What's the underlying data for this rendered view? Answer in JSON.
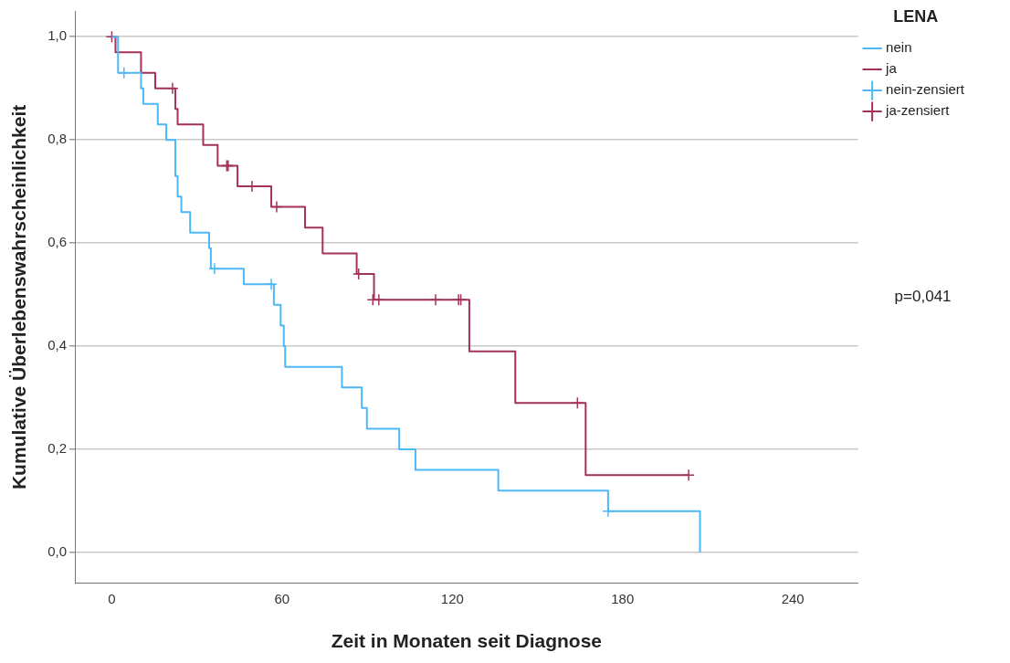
{
  "chart_data": {
    "type": "step",
    "xlabel": "Zeit in Monaten seit Diagnose",
    "ylabel": "Kumulative Überlebenswahrscheinlichkeit",
    "legend_title": "LENA",
    "annotations": [
      "p=0,041"
    ],
    "xlim": [
      -13,
      263
    ],
    "xticks": [
      0,
      60,
      120,
      180,
      240
    ],
    "ylim": [
      -0.06,
      1.05
    ],
    "yticks": [
      {
        "value": 0,
        "label": "0,0"
      },
      {
        "value": 0.2,
        "label": "0,2"
      },
      {
        "value": 0.4,
        "label": "0,4"
      },
      {
        "value": 0.6,
        "label": "0,6"
      },
      {
        "value": 0.8,
        "label": "0,8"
      },
      {
        "value": 1,
        "label": "1,0"
      }
    ],
    "grid": "y",
    "legend": "top right",
    "series": [
      {
        "name": "nein",
        "color": "#4cb8f5",
        "x": [
          0,
          2.2,
          10.3,
          11.1,
          16.2,
          19.2,
          22.4,
          23.2,
          24.5,
          27.6,
          34.3,
          34.9,
          46.5,
          57.1,
          59.5,
          60.6,
          61.1,
          81.1,
          88.1,
          89.9,
          101.3,
          107,
          136.2,
          174.9,
          207.3
        ],
        "values": [
          1,
          0.93,
          0.9,
          0.87,
          0.83,
          0.8,
          0.73,
          0.69,
          0.66,
          0.62,
          0.59,
          0.55,
          0.52,
          0.48,
          0.44,
          0.4,
          0.36,
          0.32,
          0.28,
          0.24,
          0.2,
          0.16,
          0.12,
          0.08,
          0
        ]
      },
      {
        "name": "ja",
        "color": "#a3325a",
        "x": [
          0,
          1.3,
          10.3,
          15.3,
          22.4,
          23.2,
          32.2,
          37.3,
          44.3,
          56.2,
          68.1,
          74.3,
          86.3,
          92.4,
          126,
          142.2,
          167,
          203.3
        ],
        "values": [
          1,
          0.97,
          0.93,
          0.9,
          0.86,
          0.83,
          0.79,
          0.75,
          0.71,
          0.67,
          0.63,
          0.58,
          0.54,
          0.49,
          0.39,
          0.29,
          0.15,
          0.15
        ]
      },
      {
        "name": "nein-zensiert",
        "type": "scatter",
        "marker": "cross",
        "color": "#4cb8f5",
        "x": [
          4.3,
          36.2,
          56.2,
          174.9
        ],
        "values": [
          0.93,
          0.55,
          0.52,
          0.08
        ]
      },
      {
        "name": "ja-zensiert",
        "type": "scatter",
        "marker": "cross",
        "color": "#a3325a",
        "x": [
          0,
          21.4,
          40.5,
          41,
          49.4,
          58.1,
          87,
          92,
          94.1,
          114.1,
          122.2,
          123,
          164.1,
          203.3
        ],
        "values": [
          1,
          0.9,
          0.75,
          0.75,
          0.71,
          0.67,
          0.54,
          0.49,
          0.49,
          0.49,
          0.49,
          0.49,
          0.29,
          0.15
        ]
      }
    ]
  }
}
